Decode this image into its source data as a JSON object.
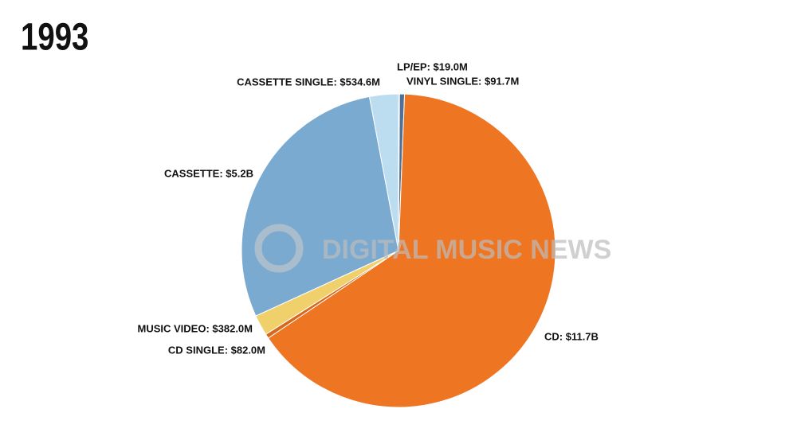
{
  "chart_data": {
    "type": "pie",
    "title": "1993",
    "watermark": "DIGITAL MUSIC NEWS",
    "values": [
      19000000,
      91700000,
      11700000000,
      82000000,
      382000000,
      5200000000,
      534600000
    ],
    "value_labels": [
      "LP/EP: $19.0M",
      "VINYL SINGLE: $91.7M",
      "CD: $11.7B",
      "CD SINGLE: $82.0M",
      "MUSIC VIDEO: $382.0M",
      "CASSETTE: $5.2B",
      "CASSETTE SINGLE: $534.6M"
    ],
    "colors": [
      "#34506e",
      "#4f7196",
      "#ee7623",
      "#d8681c",
      "#f0d06a",
      "#7aaad0",
      "#bcdcf0"
    ]
  }
}
